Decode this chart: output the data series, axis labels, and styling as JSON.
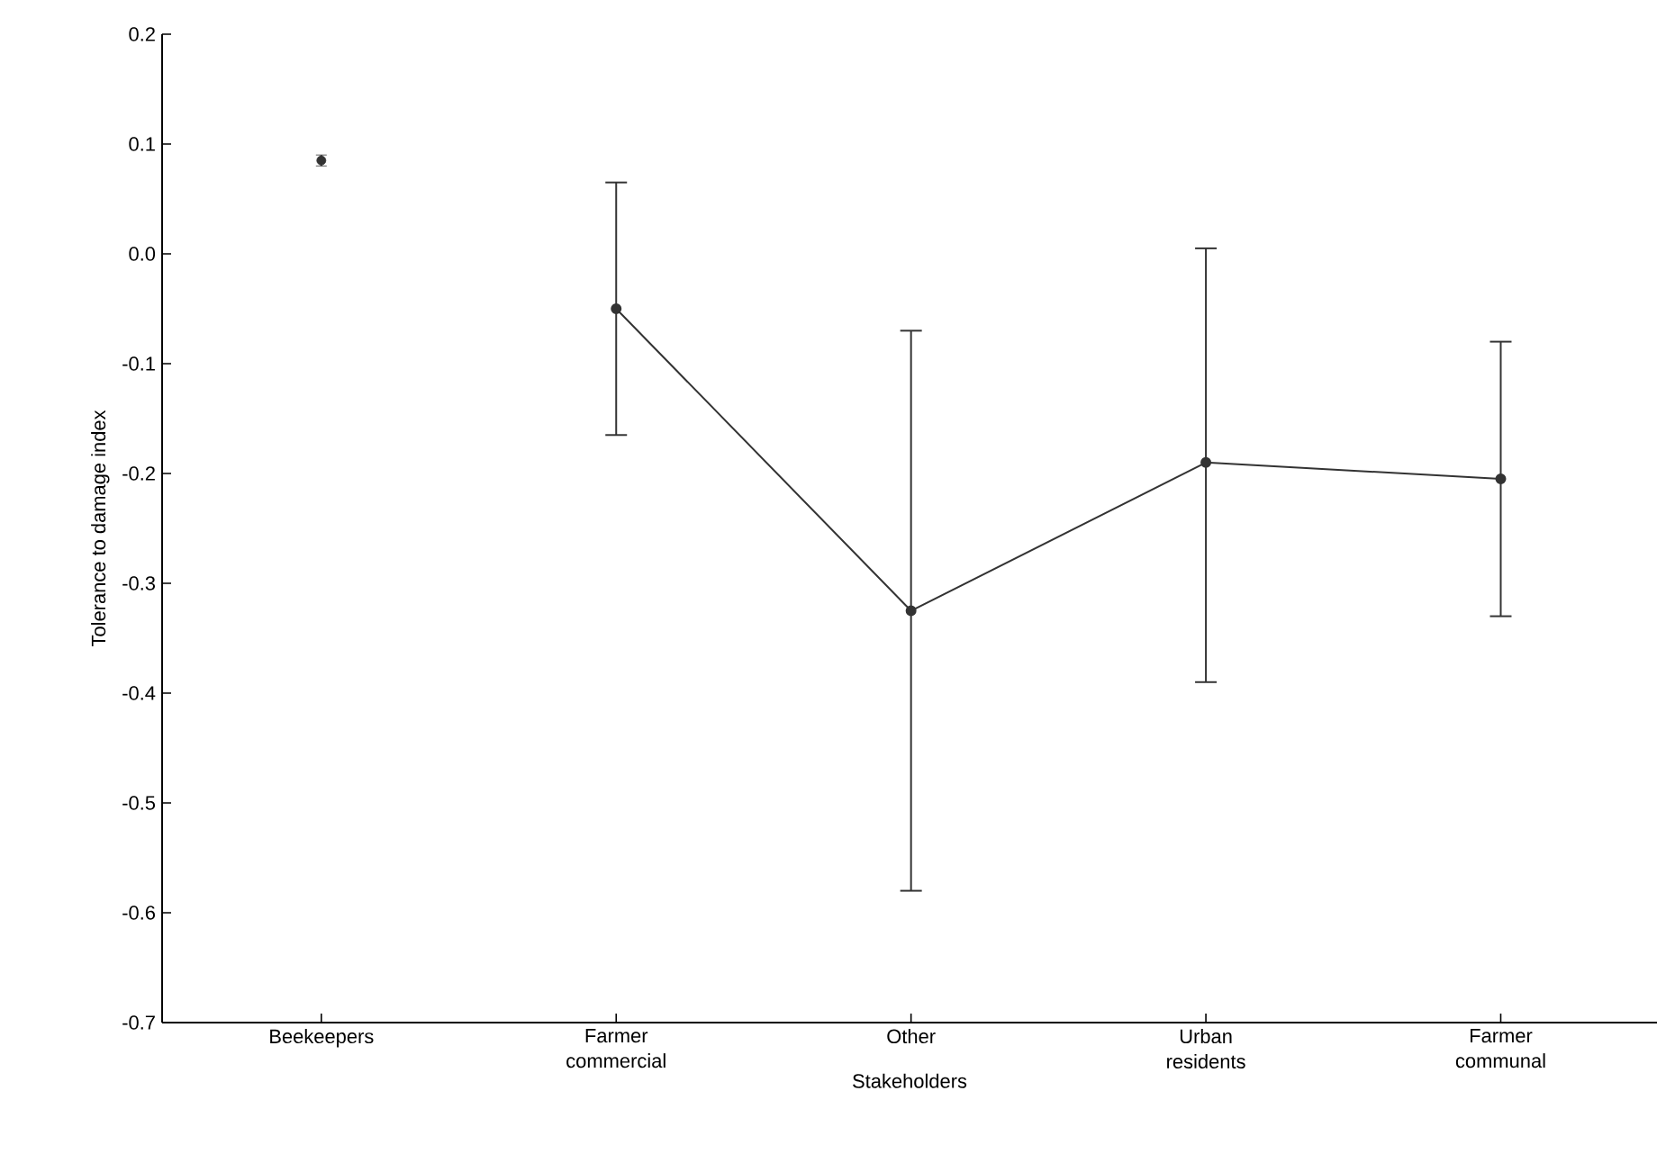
{
  "chart_data": {
    "type": "line",
    "xlabel": "Stakeholders",
    "ylabel": "Tolerance to damage index",
    "categories": [
      "Beekeepers",
      "Farmer commercial",
      "Other",
      "Urban residents",
      "Farmer communal"
    ],
    "series": [
      {
        "type": "scatter",
        "color": "#333333",
        "values": [
          0.085,
          null,
          null,
          null,
          null
        ],
        "errors": [
          0.005,
          null,
          null,
          null,
          null
        ]
      },
      {
        "color": "#333333",
        "values": [
          null,
          -0.05,
          -0.325,
          -0.19,
          -0.205
        ],
        "errors": [
          null,
          [
            -0.165,
            0.065
          ],
          [
            -0.58,
            -0.07
          ],
          [
            -0.39,
            0.005
          ],
          [
            -0.33,
            -0.08
          ]
        ]
      }
    ],
    "ylim": [
      -0.7,
      0.2
    ],
    "yticks": [
      -0.7,
      -0.6,
      -0.5,
      -0.4,
      -0.3,
      -0.2,
      -0.1,
      {
        "value": 0,
        "label": "0.0"
      },
      0.1,
      0.2
    ],
    "marker": "circle"
  }
}
